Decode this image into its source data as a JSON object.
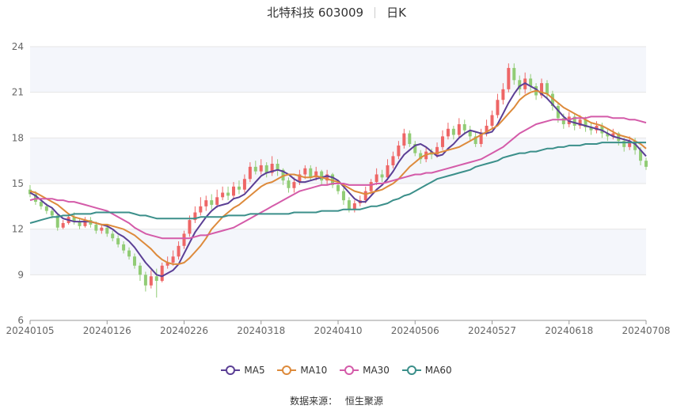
{
  "header": {
    "company": "北特科技 603009",
    "period": "日K"
  },
  "source": {
    "label": "数据来源：",
    "name": "恒生聚源"
  },
  "colors": {
    "up": "#ee6666",
    "down": "#91cc75",
    "grid": "#e6e6e6",
    "band": "#f4f6fb",
    "axis": "#666666"
  },
  "chart_data": {
    "type": "candlestick",
    "ylim": [
      6,
      24
    ],
    "yticks": [
      6,
      9,
      12,
      15,
      18,
      21,
      24
    ],
    "x_ticks": [
      {
        "label": "20240105",
        "index": 0
      },
      {
        "label": "20240126",
        "index": 14
      },
      {
        "label": "20240226",
        "index": 28
      },
      {
        "label": "20240318",
        "index": 42
      },
      {
        "label": "20240410",
        "index": 56
      },
      {
        "label": "20240506",
        "index": 70
      },
      {
        "label": "20240527",
        "index": 84
      },
      {
        "label": "20240618",
        "index": 98
      },
      {
        "label": "20240708",
        "index": 112
      }
    ],
    "candles": [
      [
        14.6,
        14.3,
        14.9,
        14.1
      ],
      [
        14.3,
        13.8,
        14.5,
        13.6
      ],
      [
        13.8,
        13.5,
        14.0,
        13.3
      ],
      [
        13.5,
        13.2,
        13.7,
        13.0
      ],
      [
        13.2,
        12.9,
        13.4,
        12.7
      ],
      [
        12.9,
        12.1,
        13.0,
        11.9
      ],
      [
        12.1,
        12.4,
        12.6,
        12.0
      ],
      [
        12.4,
        12.8,
        13.0,
        12.3
      ],
      [
        12.8,
        12.5,
        13.1,
        12.3
      ],
      [
        12.5,
        12.2,
        12.7,
        12.0
      ],
      [
        12.2,
        12.6,
        12.8,
        12.1
      ],
      [
        12.6,
        12.3,
        12.8,
        12.1
      ],
      [
        12.3,
        11.9,
        12.5,
        11.7
      ],
      [
        11.9,
        12.1,
        12.3,
        11.7
      ],
      [
        12.1,
        11.7,
        12.3,
        11.5
      ],
      [
        11.7,
        11.4,
        11.9,
        11.2
      ],
      [
        11.4,
        11.0,
        11.6,
        10.8
      ],
      [
        11.0,
        10.6,
        11.2,
        10.4
      ],
      [
        10.6,
        10.2,
        10.8,
        10.0
      ],
      [
        10.2,
        9.6,
        10.4,
        9.4
      ],
      [
        9.6,
        9.0,
        9.8,
        8.6
      ],
      [
        9.0,
        8.3,
        9.2,
        7.9
      ],
      [
        8.3,
        8.9,
        9.3,
        8.1
      ],
      [
        8.9,
        8.6,
        9.4,
        7.5
      ],
      [
        8.6,
        9.6,
        9.8,
        8.5
      ],
      [
        9.6,
        9.8,
        10.2,
        9.4
      ],
      [
        9.8,
        10.2,
        10.6,
        9.6
      ],
      [
        10.2,
        10.9,
        11.2,
        10.0
      ],
      [
        10.9,
        11.7,
        11.9,
        10.7
      ],
      [
        11.7,
        12.6,
        12.9,
        11.5
      ],
      [
        12.6,
        13.1,
        13.5,
        12.4
      ],
      [
        13.1,
        13.5,
        14.1,
        12.9
      ],
      [
        13.5,
        13.9,
        14.2,
        13.2
      ],
      [
        13.9,
        13.6,
        14.3,
        13.3
      ],
      [
        13.6,
        14.1,
        14.6,
        13.4
      ],
      [
        14.1,
        14.4,
        14.8,
        13.9
      ],
      [
        14.4,
        14.2,
        14.8,
        13.9
      ],
      [
        14.2,
        14.8,
        15.1,
        14.0
      ],
      [
        14.8,
        14.6,
        15.2,
        14.3
      ],
      [
        14.6,
        15.3,
        15.6,
        14.4
      ],
      [
        15.3,
        16.1,
        16.4,
        15.1
      ],
      [
        16.1,
        15.8,
        16.5,
        15.6
      ],
      [
        15.8,
        16.2,
        16.6,
        15.6
      ],
      [
        16.2,
        15.7,
        16.4,
        15.4
      ],
      [
        15.7,
        16.3,
        16.8,
        15.5
      ],
      [
        16.3,
        15.9,
        16.6,
        15.5
      ],
      [
        15.9,
        15.2,
        16.0,
        14.9
      ],
      [
        15.2,
        14.7,
        15.4,
        14.4
      ],
      [
        14.7,
        15.1,
        15.4,
        14.4
      ],
      [
        15.1,
        15.6,
        15.9,
        14.9
      ],
      [
        15.6,
        16.0,
        16.2,
        15.3
      ],
      [
        16.0,
        15.4,
        16.2,
        15.2
      ],
      [
        15.4,
        15.8,
        16.1,
        15.2
      ],
      [
        15.8,
        15.2,
        15.9,
        14.9
      ],
      [
        15.2,
        15.6,
        15.9,
        14.9
      ],
      [
        15.6,
        14.9,
        15.7,
        14.7
      ],
      [
        14.9,
        14.5,
        15.1,
        14.3
      ],
      [
        14.5,
        13.9,
        14.7,
        13.6
      ],
      [
        13.9,
        13.3,
        14.1,
        13.1
      ],
      [
        13.3,
        13.7,
        13.9,
        13.1
      ],
      [
        13.7,
        13.9,
        14.2,
        13.5
      ],
      [
        13.9,
        14.5,
        14.8,
        13.7
      ],
      [
        14.5,
        15.1,
        15.3,
        14.3
      ],
      [
        15.1,
        15.6,
        16.0,
        14.9
      ],
      [
        15.6,
        15.4,
        15.9,
        15.1
      ],
      [
        15.4,
        16.2,
        16.6,
        15.2
      ],
      [
        16.2,
        16.8,
        17.1,
        16.0
      ],
      [
        16.8,
        17.5,
        17.8,
        16.6
      ],
      [
        17.5,
        18.3,
        18.6,
        17.3
      ],
      [
        18.3,
        17.6,
        18.5,
        17.4
      ],
      [
        17.6,
        17.0,
        17.8,
        16.8
      ],
      [
        17.0,
        16.6,
        17.2,
        16.3
      ],
      [
        16.6,
        17.1,
        17.4,
        16.4
      ],
      [
        17.1,
        16.9,
        17.3,
        16.6
      ],
      [
        16.9,
        17.4,
        17.7,
        16.7
      ],
      [
        17.4,
        18.1,
        18.5,
        17.2
      ],
      [
        18.1,
        18.6,
        19.0,
        17.9
      ],
      [
        18.6,
        18.2,
        18.8,
        17.9
      ],
      [
        18.2,
        18.9,
        19.3,
        18.0
      ],
      [
        18.9,
        18.5,
        19.2,
        18.2
      ],
      [
        18.5,
        18.1,
        18.8,
        17.8
      ],
      [
        18.1,
        17.6,
        18.4,
        17.4
      ],
      [
        17.6,
        18.3,
        18.6,
        17.4
      ],
      [
        18.3,
        18.8,
        19.2,
        18.1
      ],
      [
        18.8,
        19.5,
        19.8,
        18.6
      ],
      [
        19.5,
        20.5,
        20.9,
        19.3
      ],
      [
        20.5,
        21.2,
        21.6,
        20.2
      ],
      [
        21.2,
        22.6,
        22.9,
        21.0
      ],
      [
        22.6,
        21.8,
        22.9,
        21.5
      ],
      [
        21.8,
        21.2,
        22.1,
        20.8
      ],
      [
        21.2,
        21.9,
        22.3,
        20.9
      ],
      [
        21.9,
        21.4,
        22.2,
        21.1
      ],
      [
        21.4,
        20.8,
        21.6,
        20.5
      ],
      [
        20.8,
        21.6,
        21.9,
        20.6
      ],
      [
        21.6,
        20.9,
        21.8,
        20.6
      ],
      [
        20.9,
        20.1,
        21.1,
        19.8
      ],
      [
        20.1,
        19.3,
        20.3,
        19.0
      ],
      [
        19.3,
        18.9,
        19.6,
        18.6
      ],
      [
        18.9,
        19.4,
        19.7,
        18.7
      ],
      [
        19.4,
        18.8,
        19.6,
        18.5
      ],
      [
        18.8,
        19.2,
        19.5,
        18.6
      ],
      [
        19.2,
        18.7,
        19.4,
        18.4
      ],
      [
        18.7,
        18.5,
        19.0,
        18.2
      ],
      [
        18.5,
        18.8,
        19.1,
        18.3
      ],
      [
        18.8,
        18.3,
        19.0,
        18.0
      ],
      [
        18.3,
        18.1,
        18.6,
        17.8
      ],
      [
        18.1,
        18.3,
        18.6,
        17.9
      ],
      [
        18.3,
        17.8,
        18.4,
        17.5
      ],
      [
        17.8,
        17.4,
        18.0,
        17.1
      ],
      [
        17.4,
        17.8,
        18.1,
        17.2
      ],
      [
        17.8,
        17.2,
        18.0,
        16.9
      ],
      [
        17.2,
        16.5,
        17.4,
        16.2
      ],
      [
        16.5,
        16.1,
        16.7,
        15.9
      ]
    ],
    "series": [
      {
        "name": "MA5",
        "color": "#5b3f95",
        "values": [
          14.4,
          14.2,
          13.9,
          13.6,
          13.4,
          13.0,
          12.7,
          12.6,
          12.5,
          12.5,
          12.5,
          12.5,
          12.4,
          12.3,
          12.2,
          12.0,
          11.7,
          11.5,
          11.2,
          10.8,
          10.3,
          9.8,
          9.4,
          9.0,
          8.9,
          9.1,
          9.3,
          9.7,
          10.4,
          11.1,
          11.8,
          12.3,
          12.8,
          13.2,
          13.5,
          13.6,
          13.7,
          14.0,
          14.1,
          14.3,
          14.7,
          15.1,
          15.5,
          15.7,
          15.8,
          15.9,
          15.8,
          15.6,
          15.3,
          15.1,
          15.1,
          15.2,
          15.3,
          15.4,
          15.5,
          15.4,
          15.2,
          14.8,
          14.4,
          14.0,
          13.8,
          13.8,
          14.2,
          14.6,
          14.9,
          15.3,
          15.8,
          16.4,
          16.9,
          17.2,
          17.5,
          17.6,
          17.4,
          17.1,
          16.8,
          16.9,
          17.3,
          17.6,
          18.0,
          18.3,
          18.5,
          18.4,
          18.3,
          18.3,
          18.4,
          18.9,
          19.6,
          20.3,
          20.9,
          21.4,
          21.6,
          21.4,
          21.2,
          20.9,
          20.6,
          20.2,
          19.8,
          19.4,
          19.1,
          19.0,
          18.9,
          18.8,
          18.7,
          18.6,
          18.5,
          18.3,
          18.1,
          18.0,
          17.9,
          17.8,
          17.6,
          17.2,
          16.8
        ]
      },
      {
        "name": "MA10",
        "color": "#dd8a3b",
        "values": [
          14.5,
          14.4,
          14.2,
          14.0,
          13.8,
          13.6,
          13.3,
          13.0,
          12.8,
          12.7,
          12.6,
          12.5,
          12.4,
          12.3,
          12.3,
          12.2,
          12.1,
          12.0,
          11.8,
          11.6,
          11.3,
          11.0,
          10.7,
          10.3,
          10.0,
          9.8,
          9.7,
          9.7,
          9.8,
          10.1,
          10.5,
          10.9,
          11.4,
          12.0,
          12.4,
          12.8,
          13.1,
          13.4,
          13.6,
          13.9,
          14.2,
          14.5,
          14.8,
          15.0,
          15.1,
          15.3,
          15.5,
          15.6,
          15.6,
          15.5,
          15.4,
          15.4,
          15.5,
          15.4,
          15.3,
          15.2,
          15.1,
          14.9,
          14.7,
          14.5,
          14.4,
          14.3,
          14.4,
          14.5,
          14.6,
          14.8,
          15.0,
          15.3,
          15.7,
          16.1,
          16.4,
          16.7,
          16.9,
          17.0,
          17.0,
          17.1,
          17.2,
          17.3,
          17.4,
          17.6,
          17.8,
          18.0,
          18.2,
          18.4,
          18.6,
          18.8,
          19.2,
          19.6,
          20.0,
          20.5,
          20.8,
          21.0,
          21.1,
          21.0,
          20.9,
          20.6,
          20.3,
          20.0,
          19.8,
          19.6,
          19.4,
          19.2,
          19.0,
          18.9,
          18.8,
          18.6,
          18.4,
          18.2,
          18.1,
          18.0,
          17.8,
          17.6,
          17.3
        ]
      },
      {
        "name": "MA30",
        "color": "#d45ba9",
        "values": [
          13.9,
          14.0,
          14.0,
          14.0,
          14.0,
          13.9,
          13.9,
          13.8,
          13.8,
          13.7,
          13.6,
          13.5,
          13.4,
          13.3,
          13.2,
          13.0,
          12.8,
          12.6,
          12.4,
          12.1,
          11.9,
          11.7,
          11.6,
          11.5,
          11.4,
          11.4,
          11.4,
          11.4,
          11.4,
          11.4,
          11.5,
          11.6,
          11.6,
          11.7,
          11.8,
          11.9,
          12.0,
          12.1,
          12.3,
          12.5,
          12.7,
          12.9,
          13.1,
          13.3,
          13.5,
          13.7,
          13.9,
          14.1,
          14.3,
          14.5,
          14.6,
          14.7,
          14.8,
          14.9,
          14.9,
          15.0,
          15.0,
          15.0,
          14.9,
          14.9,
          14.9,
          14.9,
          14.9,
          15.0,
          15.0,
          15.1,
          15.2,
          15.3,
          15.4,
          15.5,
          15.6,
          15.6,
          15.7,
          15.7,
          15.8,
          15.9,
          16.0,
          16.1,
          16.2,
          16.3,
          16.4,
          16.5,
          16.6,
          16.8,
          17.0,
          17.2,
          17.4,
          17.7,
          18.0,
          18.3,
          18.5,
          18.7,
          18.9,
          19.0,
          19.1,
          19.2,
          19.2,
          19.2,
          19.2,
          19.3,
          19.3,
          19.3,
          19.4,
          19.4,
          19.4,
          19.4,
          19.3,
          19.3,
          19.3,
          19.2,
          19.2,
          19.1,
          19.0
        ]
      },
      {
        "name": "MA60",
        "color": "#3b8f8a",
        "values": [
          12.4,
          12.5,
          12.6,
          12.7,
          12.8,
          12.8,
          12.9,
          12.9,
          13.0,
          13.0,
          13.0,
          13.0,
          13.1,
          13.1,
          13.1,
          13.1,
          13.1,
          13.1,
          13.1,
          13.0,
          12.9,
          12.9,
          12.8,
          12.7,
          12.7,
          12.7,
          12.7,
          12.7,
          12.7,
          12.7,
          12.7,
          12.8,
          12.8,
          12.8,
          12.8,
          12.8,
          12.9,
          12.9,
          12.9,
          12.9,
          13.0,
          13.0,
          13.0,
          13.0,
          13.0,
          13.0,
          13.0,
          13.0,
          13.1,
          13.1,
          13.1,
          13.1,
          13.1,
          13.2,
          13.2,
          13.2,
          13.2,
          13.3,
          13.3,
          13.3,
          13.3,
          13.4,
          13.5,
          13.5,
          13.6,
          13.7,
          13.9,
          14.0,
          14.2,
          14.3,
          14.5,
          14.7,
          14.9,
          15.1,
          15.3,
          15.4,
          15.5,
          15.6,
          15.7,
          15.8,
          15.9,
          16.1,
          16.2,
          16.3,
          16.4,
          16.5,
          16.7,
          16.8,
          16.9,
          17.0,
          17.0,
          17.1,
          17.1,
          17.2,
          17.3,
          17.3,
          17.4,
          17.4,
          17.5,
          17.5,
          17.5,
          17.6,
          17.6,
          17.6,
          17.7,
          17.7,
          17.7,
          17.7,
          17.7,
          17.7,
          17.7,
          17.7,
          17.7
        ]
      }
    ]
  }
}
